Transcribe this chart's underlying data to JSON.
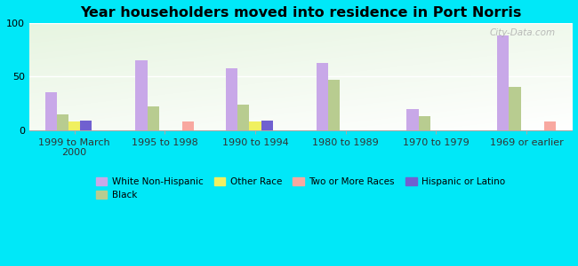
{
  "title": "Year householders moved into residence in Port Norris",
  "categories": [
    "1999 to March\n2000",
    "1995 to 1998",
    "1990 to 1994",
    "1980 to 1989",
    "1970 to 1979",
    "1969 or earlier"
  ],
  "series": {
    "White Non-Hispanic": [
      35,
      65,
      58,
      63,
      20,
      88
    ],
    "Black": [
      15,
      22,
      24,
      47,
      13,
      40
    ],
    "Other Race": [
      8,
      0,
      8,
      0,
      0,
      0
    ],
    "Hispanic or Latino": [
      9,
      0,
      9,
      0,
      0,
      0
    ],
    "Two or More Races": [
      0,
      8,
      0,
      0,
      0,
      8
    ]
  },
  "bar_order": [
    "White Non-Hispanic",
    "Black",
    "Other Race",
    "Hispanic or Latino",
    "Two or More Races"
  ],
  "colors": {
    "White Non-Hispanic": "#c8a8e8",
    "Black": "#b8cc90",
    "Other Race": "#f0f060",
    "Two or More Races": "#f8a8a0",
    "Hispanic or Latino": "#7060d0"
  },
  "legend_order": [
    "White Non-Hispanic",
    "Black",
    "Other Race",
    "Two or More Races",
    "Hispanic or Latino"
  ],
  "ylim": [
    0,
    100
  ],
  "yticks": [
    0,
    50,
    100
  ],
  "background_color": "#00e8f8",
  "watermark": "City-Data.com",
  "bar_width": 0.13
}
